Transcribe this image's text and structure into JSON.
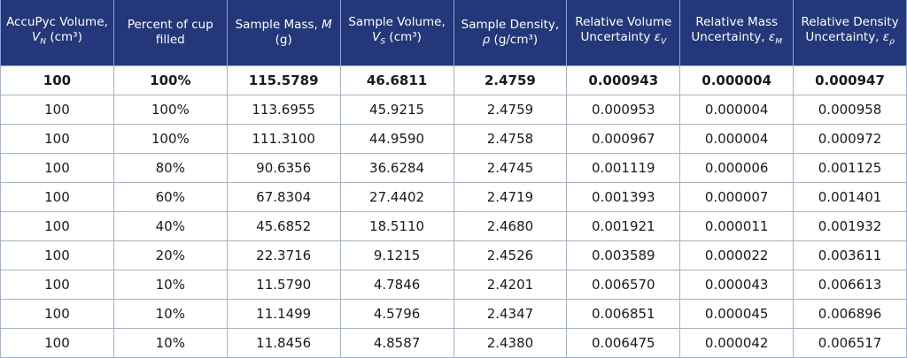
{
  "table": {
    "headers": [
      {
        "text": "AccuPyc Volume,",
        "symbol": "V",
        "subscript": "N",
        "unit": "(cm³)"
      },
      {
        "text": "Percent of cup filled"
      },
      {
        "text": "Sample Mass,",
        "symbol": "M",
        "unit": "(g)"
      },
      {
        "text": "Sample Volume,",
        "symbol": "V",
        "subscript": "S",
        "unit": "(cm³)"
      },
      {
        "text": "Sample Density,",
        "symbol": "ρ",
        "unit": "(g/cm³)"
      },
      {
        "text": "Relative Volume Uncertainty",
        "symbol": "ε",
        "subscript": "V"
      },
      {
        "text": "Relative Mass Uncertainty,",
        "symbol": "ε",
        "subscript": "M"
      },
      {
        "text": "Relative Density Uncertainty,",
        "symbol": "ε",
        "subscript": "ρ"
      }
    ],
    "rows": [
      [
        "100",
        "100%",
        "115.5789",
        "46.6811",
        "2.4759",
        "0.000943",
        "0.000004",
        "0.000947"
      ],
      [
        "100",
        "100%",
        "113.6955",
        "45.9215",
        "2.4759",
        "0.000953",
        "0.000004",
        "0.000958"
      ],
      [
        "100",
        "100%",
        "111.3100",
        "44.9590",
        "2.4758",
        "0.000967",
        "0.000004",
        "0.000972"
      ],
      [
        "100",
        "80%",
        "90.6356",
        "36.6284",
        "2.4745",
        "0.001119",
        "0.000006",
        "0.001125"
      ],
      [
        "100",
        "60%",
        "67.8304",
        "27.4402",
        "2.4719",
        "0.001393",
        "0.000007",
        "0.001401"
      ],
      [
        "100",
        "40%",
        "45.6852",
        "18.5110",
        "2.4680",
        "0.001921",
        "0.000011",
        "0.001932"
      ],
      [
        "100",
        "20%",
        "22.3716",
        "9.1215",
        "2.4526",
        "0.003589",
        "0.000022",
        "0.003611"
      ],
      [
        "100",
        "10%",
        "11.5790",
        "4.7846",
        "2.4201",
        "0.006570",
        "0.000043",
        "0.006613"
      ],
      [
        "100",
        "10%",
        "11.1499",
        "4.5796",
        "2.4347",
        "0.006851",
        "0.000045",
        "0.006896"
      ],
      [
        "100",
        "10%",
        "11.8456",
        "4.8587",
        "2.4380",
        "0.006475",
        "0.000042",
        "0.006517"
      ]
    ],
    "bold_rows": [
      0
    ]
  }
}
